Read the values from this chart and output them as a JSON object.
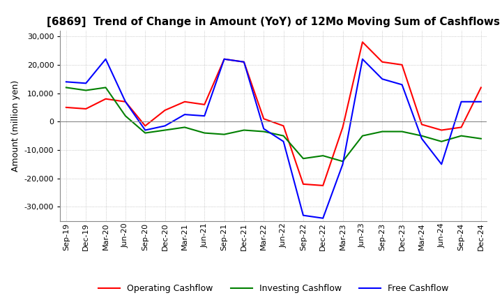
{
  "title": "[6869]  Trend of Change in Amount (YoY) of 12Mo Moving Sum of Cashflows",
  "ylabel": "Amount (million yen)",
  "ylim": [
    -35000,
    32000
  ],
  "yticks": [
    -30000,
    -20000,
    -10000,
    0,
    10000,
    20000,
    30000
  ],
  "x_labels": [
    "Sep-19",
    "Dec-19",
    "Mar-20",
    "Jun-20",
    "Sep-20",
    "Dec-20",
    "Mar-21",
    "Jun-21",
    "Sep-21",
    "Dec-21",
    "Mar-22",
    "Jun-22",
    "Sep-22",
    "Dec-22",
    "Mar-23",
    "Jun-23",
    "Sep-23",
    "Dec-23",
    "Mar-24",
    "Jun-24",
    "Sep-24",
    "Dec-24"
  ],
  "operating": [
    5000,
    4500,
    8000,
    7000,
    -1500,
    4000,
    7000,
    6000,
    22000,
    21000,
    1000,
    -1500,
    -22000,
    -22500,
    -2000,
    28000,
    21000,
    20000,
    -1000,
    -3000,
    -2000,
    12000
  ],
  "investing": [
    12000,
    11000,
    12000,
    2000,
    -4000,
    -3000,
    -2000,
    -4000,
    -4500,
    -3000,
    -3500,
    -5000,
    -13000,
    -12000,
    -14000,
    -5000,
    -3500,
    -3500,
    -5000,
    -7000,
    -5000,
    -6000
  ],
  "free": [
    14000,
    13500,
    22000,
    7000,
    -3000,
    -1500,
    2500,
    2000,
    22000,
    21000,
    -2500,
    -7000,
    -33000,
    -34000,
    -15000,
    22000,
    15000,
    13000,
    -6000,
    -15000,
    7000,
    7000
  ],
  "operating_color": "#ff0000",
  "investing_color": "#008000",
  "free_color": "#0000ff",
  "background_color": "#ffffff",
  "grid_color": "#aaaaaa",
  "title_fontsize": 11,
  "axis_fontsize": 9,
  "tick_fontsize": 8,
  "legend_fontsize": 9
}
